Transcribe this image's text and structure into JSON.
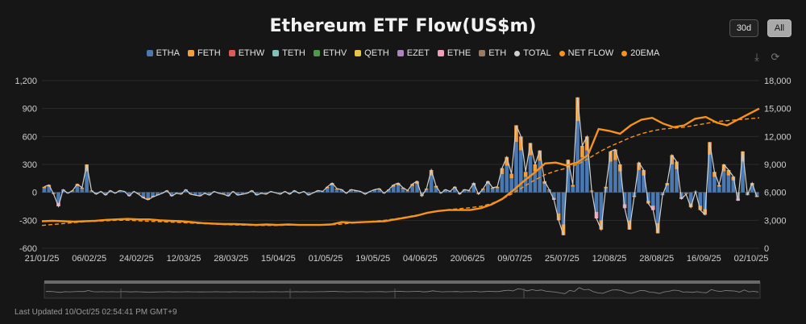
{
  "title": "Ethereum ETF Flow(US$m)",
  "buttons": {
    "range_30d": "30d",
    "range_all": "All"
  },
  "legend": [
    {
      "label": "ETHA",
      "color": "#4a78b0",
      "shape": "square"
    },
    {
      "label": "FETH",
      "color": "#f0a040",
      "shape": "square"
    },
    {
      "label": "ETHW",
      "color": "#e05a50",
      "shape": "square"
    },
    {
      "label": "TETH",
      "color": "#7fc0b8",
      "shape": "square"
    },
    {
      "label": "ETHV",
      "color": "#4e9a4a",
      "shape": "square"
    },
    {
      "label": "QETH",
      "color": "#e8c34a",
      "shape": "square"
    },
    {
      "label": "EZET",
      "color": "#b084c0",
      "shape": "square"
    },
    {
      "label": "ETHE",
      "color": "#f0a0b8",
      "shape": "square"
    },
    {
      "label": "ETH",
      "color": "#9a7a60",
      "shape": "square"
    },
    {
      "label": "TOTAL",
      "color": "#d0d0d0",
      "shape": "dot"
    },
    {
      "label": "NET FLOW",
      "color": "#f7931a",
      "shape": "dot"
    },
    {
      "label": "20EMA",
      "color": "#f7931a",
      "shape": "dot"
    }
  ],
  "icons": {
    "download": "download-icon",
    "refresh": "refresh-icon"
  },
  "last_updated": "Last Updated 10/Oct/25 02:54:41 PM GMT+9",
  "chart_data": {
    "type": "bar",
    "x_ticks": [
      "21/01/25",
      "06/02/25",
      "24/02/25",
      "12/03/25",
      "28/03/25",
      "15/04/25",
      "01/05/25",
      "19/05/25",
      "04/06/25",
      "20/06/25",
      "09/07/25",
      "25/07/25",
      "12/08/25",
      "28/08/25",
      "16/09/25",
      "02/10/25"
    ],
    "y_left": {
      "ticks": [
        -600,
        -300,
        0,
        300,
        600,
        900,
        1200
      ],
      "tick_labels": [
        "-600",
        "-300",
        "0",
        "300",
        "600",
        "900",
        "1,200"
      ],
      "range": [
        -600,
        1200
      ]
    },
    "y_right": {
      "ticks": [
        0,
        3000,
        6000,
        9000,
        12000,
        15000,
        18000
      ],
      "tick_labels": [
        "0",
        "3,000",
        "6,000",
        "9,000",
        "12,000",
        "15,000",
        "18,000"
      ],
      "range": [
        0,
        18000
      ]
    },
    "total_flow": [
      60,
      80,
      -20,
      -150,
      30,
      -10,
      20,
      90,
      50,
      300,
      20,
      -20,
      10,
      -30,
      20,
      -10,
      20,
      10,
      -40,
      10,
      -20,
      -60,
      -80,
      -50,
      -30,
      -10,
      20,
      -40,
      -10,
      -20,
      30,
      -20,
      -30,
      -40,
      -10,
      -30,
      10,
      -10,
      -20,
      -40,
      10,
      -30,
      -20,
      -10,
      20,
      -30,
      -10,
      -20,
      10,
      -5,
      -20,
      10,
      -20,
      20,
      -10,
      10,
      -30,
      -5,
      20,
      10,
      60,
      100,
      40,
      30,
      -10,
      30,
      20,
      10,
      -20,
      10,
      30,
      40,
      -10,
      30,
      80,
      100,
      50,
      20,
      90,
      120,
      -40,
      40,
      240,
      70,
      -10,
      30,
      10,
      60,
      -20,
      30,
      20,
      100,
      -20,
      40,
      120,
      50,
      60,
      260,
      380,
      200,
      720,
      600,
      220,
      530,
      300,
      450,
      120,
      30,
      -80,
      -300,
      -460,
      350,
      80,
      1020,
      500,
      600,
      20,
      -280,
      -400,
      60,
      440,
      460,
      300,
      -170,
      -400,
      -50,
      320,
      240,
      -120,
      -190,
      -440,
      -30,
      100,
      400,
      330,
      -70,
      -20,
      -160,
      10,
      -190,
      -240,
      540,
      220,
      80,
      300,
      240,
      170,
      -90,
      440,
      -30,
      100,
      -50
    ],
    "series_net_flow_cumulative_usd_m": "right axis (0–18,000), rising from ~2,900 to ~15,000",
    "net_flow": [
      2900,
      2950,
      2900,
      2850,
      2900,
      2950,
      3050,
      3100,
      3150,
      3100,
      3100,
      3000,
      2950,
      2900,
      2800,
      2700,
      2650,
      2600,
      2600,
      2550,
      2500,
      2550,
      2500,
      2550,
      2500,
      2500,
      2500,
      2550,
      2800,
      2750,
      2800,
      2850,
      2900,
      3100,
      3300,
      3500,
      3800,
      4000,
      4100,
      4100,
      4100,
      4300,
      4700,
      5300,
      6200,
      7200,
      8100,
      9100,
      9200,
      8900,
      9200,
      10000,
      12800,
      12600,
      12300,
      13200,
      13800,
      14000,
      13400,
      13000,
      13200,
      13900,
      14100,
      13500,
      13200,
      13800,
      14400,
      15000
    ],
    "ema20": [
      2450,
      2550,
      2650,
      2750,
      2850,
      2900,
      2950,
      3000,
      3000,
      2950,
      2900,
      2850,
      2800,
      2750,
      2700,
      2650,
      2600,
      2550,
      2500,
      2480,
      2450,
      2450,
      2450,
      2480,
      2500,
      2500,
      2500,
      2520,
      2600,
      2700,
      2800,
      2900,
      3000,
      3150,
      3350,
      3550,
      3800,
      4000,
      4150,
      4250,
      4350,
      4500,
      4800,
      5300,
      5900,
      6600,
      7300,
      7900,
      8300,
      8600,
      9000,
      9600,
      10300,
      10900,
      11400,
      11900,
      12300,
      12600,
      12800,
      12900,
      13000,
      13200,
      13400,
      13600,
      13700,
      13800,
      13900,
      14000
    ]
  }
}
